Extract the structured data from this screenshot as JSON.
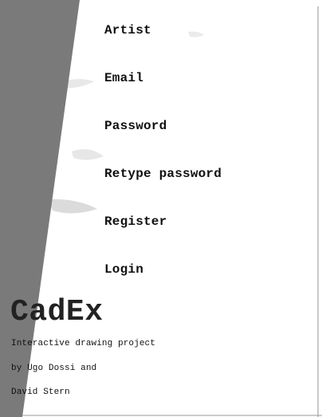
{
  "form": {
    "artist_label": "Artist",
    "email_label": "Email",
    "password_label": "Password",
    "retype_password_label": "Retype password",
    "register_label": "Register",
    "login_label": "Login"
  },
  "project": {
    "title": "CadEx",
    "subtitle": "Interactive drawing project",
    "credit_line_1": "by Ugo Dossi and",
    "credit_line_2": "David Stern"
  },
  "colors": {
    "page_background": "#ffffff",
    "side_band": "#7a7a7a",
    "text": "#111111"
  }
}
